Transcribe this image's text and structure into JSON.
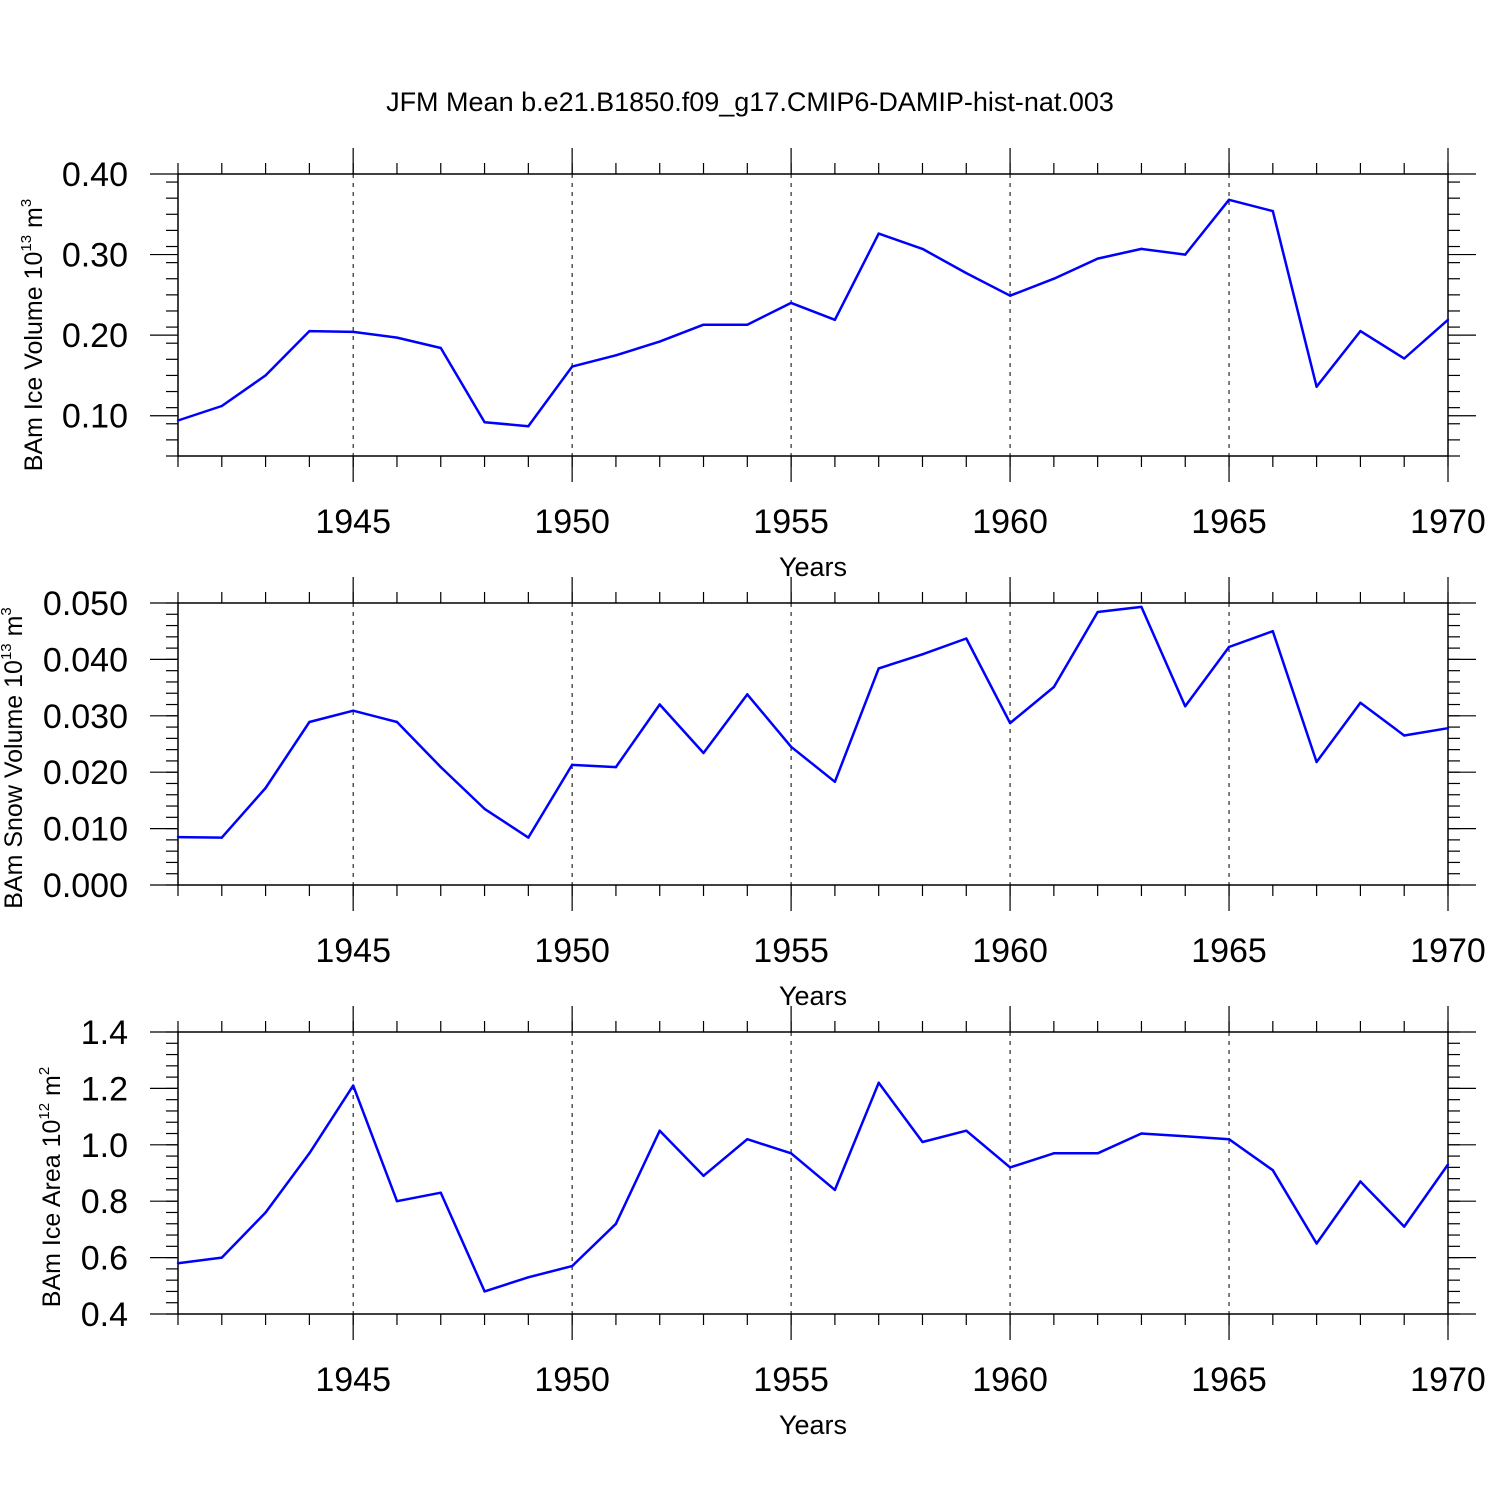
{
  "title": "JFM Mean b.e21.B1850.f09_g17.CMIP6-DAMIP-hist-nat.003",
  "colors": {
    "series": "#0000ff",
    "axis": "#000000"
  },
  "chart_data": [
    {
      "type": "line",
      "ylabel": "BAm Ice Volume 10",
      "ylabel_sup": "13",
      "ylabel_unit": "m",
      "ylabel_unit_sup": "3",
      "xlabel": "Years",
      "xlim": [
        1941,
        1970
      ],
      "ylim": [
        0.05,
        0.4
      ],
      "xticks": [
        1945,
        1950,
        1955,
        1960,
        1965,
        1970
      ],
      "xtick_labels": [
        "1945",
        "1950",
        "1955",
        "1960",
        "1965",
        "1970"
      ],
      "yticks": [
        0.1,
        0.2,
        0.3,
        0.4
      ],
      "ytick_labels": [
        "0.10",
        "0.20",
        "0.30",
        "0.40"
      ],
      "yminor_step": 0.02,
      "x": [
        1941,
        1942,
        1943,
        1944,
        1945,
        1946,
        1947,
        1948,
        1949,
        1950,
        1951,
        1952,
        1953,
        1954,
        1955,
        1956,
        1957,
        1958,
        1959,
        1960,
        1961,
        1962,
        1963,
        1964,
        1965,
        1966,
        1967,
        1968,
        1969,
        1970
      ],
      "values": [
        0.094,
        0.112,
        0.15,
        0.205,
        0.204,
        0.197,
        0.184,
        0.092,
        0.087,
        0.161,
        0.175,
        0.192,
        0.213,
        0.213,
        0.24,
        0.219,
        0.326,
        0.307,
        0.277,
        0.249,
        0.27,
        0.295,
        0.307,
        0.3,
        0.368,
        0.354,
        0.136,
        0.205,
        0.171,
        0.219
      ]
    },
    {
      "type": "line",
      "ylabel": "BAm Snow Volume 10",
      "ylabel_sup": "13",
      "ylabel_unit": "m",
      "ylabel_unit_sup": "3",
      "xlabel": "Years",
      "xlim": [
        1941,
        1970
      ],
      "ylim": [
        0.0,
        0.05
      ],
      "xticks": [
        1945,
        1950,
        1955,
        1960,
        1965,
        1970
      ],
      "xtick_labels": [
        "1945",
        "1950",
        "1955",
        "1960",
        "1965",
        "1970"
      ],
      "yticks": [
        0.0,
        0.01,
        0.02,
        0.03,
        0.04,
        0.05
      ],
      "ytick_labels": [
        "0.000",
        "0.010",
        "0.020",
        "0.030",
        "0.040",
        "0.050"
      ],
      "yminor_step": 0.002,
      "x": [
        1941,
        1942,
        1943,
        1944,
        1945,
        1946,
        1947,
        1948,
        1949,
        1950,
        1951,
        1952,
        1953,
        1954,
        1955,
        1956,
        1957,
        1958,
        1959,
        1960,
        1961,
        1962,
        1963,
        1964,
        1965,
        1966,
        1967,
        1968,
        1969,
        1970
      ],
      "values": [
        0.0085,
        0.0084,
        0.0172,
        0.0289,
        0.0309,
        0.0289,
        0.0209,
        0.0135,
        0.0084,
        0.0213,
        0.0209,
        0.032,
        0.0234,
        0.0338,
        0.0245,
        0.0183,
        0.0384,
        0.0409,
        0.0437,
        0.0287,
        0.0351,
        0.0484,
        0.0493,
        0.0317,
        0.0422,
        0.045,
        0.0218,
        0.0323,
        0.0265,
        0.0278
      ]
    },
    {
      "type": "line",
      "ylabel": "BAm Ice Area 10",
      "ylabel_sup": "12",
      "ylabel_unit": "m",
      "ylabel_unit_sup": "2",
      "xlabel": "Years",
      "xlim": [
        1941,
        1970
      ],
      "ylim": [
        0.4,
        1.4
      ],
      "xticks": [
        1945,
        1950,
        1955,
        1960,
        1965,
        1970
      ],
      "xtick_labels": [
        "1945",
        "1950",
        "1955",
        "1960",
        "1965",
        "1970"
      ],
      "yticks": [
        0.4,
        0.6,
        0.8,
        1.0,
        1.2,
        1.4
      ],
      "ytick_labels": [
        "0.4",
        "0.6",
        "0.8",
        "1.0",
        "1.2",
        "1.4"
      ],
      "yminor_step": 0.04,
      "x": [
        1941,
        1942,
        1943,
        1944,
        1945,
        1946,
        1947,
        1948,
        1949,
        1950,
        1951,
        1952,
        1953,
        1954,
        1955,
        1956,
        1957,
        1958,
        1959,
        1960,
        1961,
        1962,
        1963,
        1964,
        1965,
        1966,
        1967,
        1968,
        1969,
        1970
      ],
      "values": [
        0.58,
        0.6,
        0.76,
        0.97,
        1.21,
        0.8,
        0.83,
        0.48,
        0.53,
        0.57,
        0.72,
        1.05,
        0.89,
        1.02,
        0.97,
        0.84,
        1.22,
        1.01,
        1.05,
        0.92,
        0.97,
        0.97,
        1.04,
        1.03,
        1.02,
        0.91,
        0.65,
        0.87,
        0.71,
        0.93
      ]
    }
  ]
}
